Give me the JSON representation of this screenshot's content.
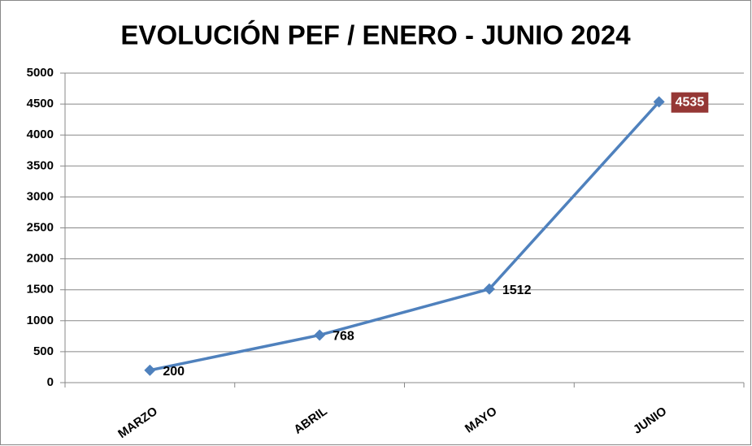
{
  "chart_data": {
    "type": "line",
    "title": "EVOLUCIÓN PEF / ENERO - JUNIO 2024",
    "categories": [
      "MARZO",
      "ABRIL",
      "MAYO",
      "JUNIO"
    ],
    "series": [
      {
        "name": "PEF",
        "color": "#4f81bd",
        "values": [
          200,
          768,
          1512,
          4535
        ]
      }
    ],
    "ylim": [
      0,
      5000
    ],
    "yticks": [
      0,
      500,
      1000,
      1500,
      2000,
      2500,
      3000,
      3500,
      4000,
      4500,
      5000
    ],
    "grid": true,
    "data_labels": true,
    "highlight_index": 3,
    "highlight_label_color": "#953735"
  }
}
